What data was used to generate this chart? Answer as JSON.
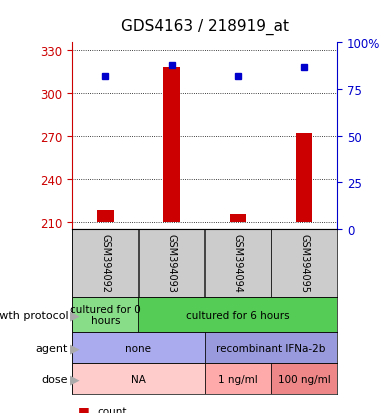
{
  "title": "GDS4163 / 218919_at",
  "samples": [
    "GSM394092",
    "GSM394093",
    "GSM394094",
    "GSM394095"
  ],
  "counts": [
    218,
    318,
    215,
    272
  ],
  "percentiles": [
    82,
    88,
    82,
    87
  ],
  "ylim_left": [
    205,
    335
  ],
  "ylim_right": [
    0,
    100
  ],
  "yticks_left": [
    210,
    240,
    270,
    300,
    330
  ],
  "yticks_right": [
    0,
    25,
    50,
    75,
    100
  ],
  "bar_color": "#cc0000",
  "dot_color": "#0000cc",
  "bar_baseline": 210,
  "growth_protocol": [
    {
      "label": "cultured for 0\nhours",
      "span": [
        0,
        1
      ],
      "color": "#88dd88"
    },
    {
      "label": "cultured for 6 hours",
      "span": [
        1,
        4
      ],
      "color": "#55cc55"
    }
  ],
  "agent": [
    {
      "label": "none",
      "span": [
        0,
        2
      ],
      "color": "#aaaaee"
    },
    {
      "label": "recombinant IFNa-2b",
      "span": [
        2,
        4
      ],
      "color": "#9999dd"
    }
  ],
  "dose": [
    {
      "label": "NA",
      "span": [
        0,
        2
      ],
      "color": "#ffcccc"
    },
    {
      "label": "1 ng/ml",
      "span": [
        2,
        3
      ],
      "color": "#ffaaaa"
    },
    {
      "label": "100 ng/ml",
      "span": [
        3,
        4
      ],
      "color": "#ee8888"
    }
  ],
  "sample_box_color": "#cccccc",
  "left_axis_color": "#cc0000",
  "right_axis_color": "#0000cc",
  "bar_width": 0.25
}
